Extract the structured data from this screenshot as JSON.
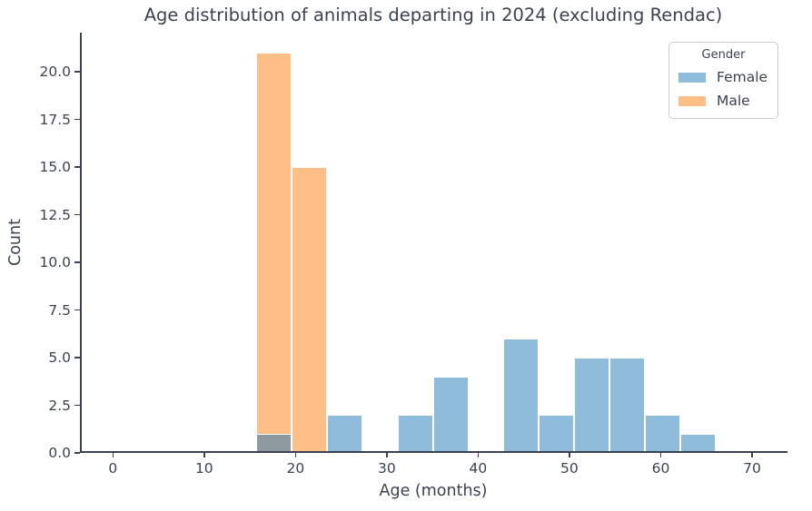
{
  "chart_data": {
    "type": "bar",
    "subtype": "histogram",
    "title": "Age distribution of animals departing in 2024 (excluding Rendac)",
    "xlabel": "Age (months)",
    "ylabel": "Count",
    "grid": false,
    "background": "#ffffff",
    "axis_color": "#3A4252",
    "text_color": "#3B4350",
    "xlim": [
      -3.61,
      73.88
    ],
    "ylim": [
      0,
      22.05
    ],
    "xticks": [
      0,
      10,
      20,
      30,
      40,
      50,
      60,
      70
    ],
    "ytick_values": [
      0,
      2.5,
      5,
      7.5,
      10,
      12.5,
      15,
      17.5,
      20
    ],
    "ytick_labels": [
      "0.0",
      "2.5",
      "5.0",
      "7.5",
      "10.0",
      "12.5",
      "15.0",
      "17.5",
      "20.0"
    ],
    "bin_edges": [
      15.66,
      19.54,
      23.41,
      27.29,
      31.16,
      35.04,
      38.92,
      42.79,
      46.67,
      50.54,
      54.42,
      58.29,
      62.17,
      66.05
    ],
    "series": [
      {
        "name": "Female",
        "color": "#8FBCDA",
        "counts": [
          1,
          0,
          2,
          0,
          2,
          4,
          0,
          6,
          2,
          5,
          5,
          2,
          1
        ]
      },
      {
        "name": "Male",
        "color": "#FFBF86",
        "counts": [
          21,
          15,
          0,
          0,
          0,
          0,
          0,
          0,
          0,
          0,
          0,
          0,
          0
        ]
      }
    ],
    "overlap_color": "#8F9AA0",
    "legend": {
      "title": "Gender",
      "position": "upper right",
      "entries": [
        {
          "label": "Female",
          "color": "#8FBCDA"
        },
        {
          "label": "Male",
          "color": "#FFBF86"
        }
      ]
    }
  }
}
